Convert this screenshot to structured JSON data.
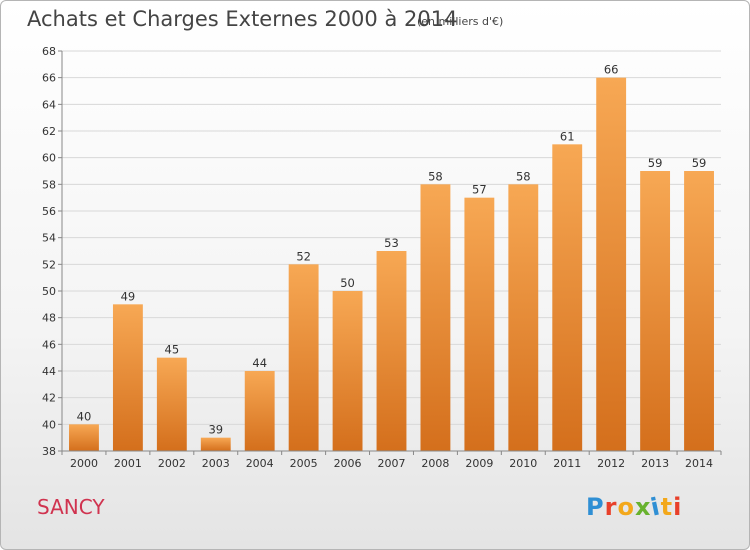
{
  "header": {
    "title": "Achats et Charges Externes 2000 à 2014",
    "subtitle": "(en milliers d'€)"
  },
  "commune": "SANCY",
  "logo": {
    "text": "Proxiti",
    "colors": [
      "#2f8fd4",
      "#e8402a",
      "#f3a81b",
      "#68b22e",
      "#2f8fd4",
      "#f3a81b",
      "#e8402a"
    ]
  },
  "colors": {
    "bar_top": "#f7a854",
    "bar_bottom": "#d46f1c",
    "gridline": "#d8d8d8",
    "axis": "#888888"
  },
  "chart_data": {
    "type": "bar",
    "categories": [
      "2000",
      "2001",
      "2002",
      "2003",
      "2004",
      "2005",
      "2006",
      "2007",
      "2008",
      "2009",
      "2010",
      "2011",
      "2012",
      "2013",
      "2014"
    ],
    "values": [
      40,
      49,
      45,
      39,
      44,
      52,
      50,
      53,
      58,
      57,
      58,
      61,
      66,
      59,
      59
    ],
    "ylim": [
      38,
      68
    ],
    "yticks": [
      38,
      40,
      42,
      44,
      46,
      48,
      50,
      52,
      54,
      56,
      58,
      60,
      62,
      64,
      66,
      68
    ],
    "grid": true,
    "legend": "none"
  }
}
